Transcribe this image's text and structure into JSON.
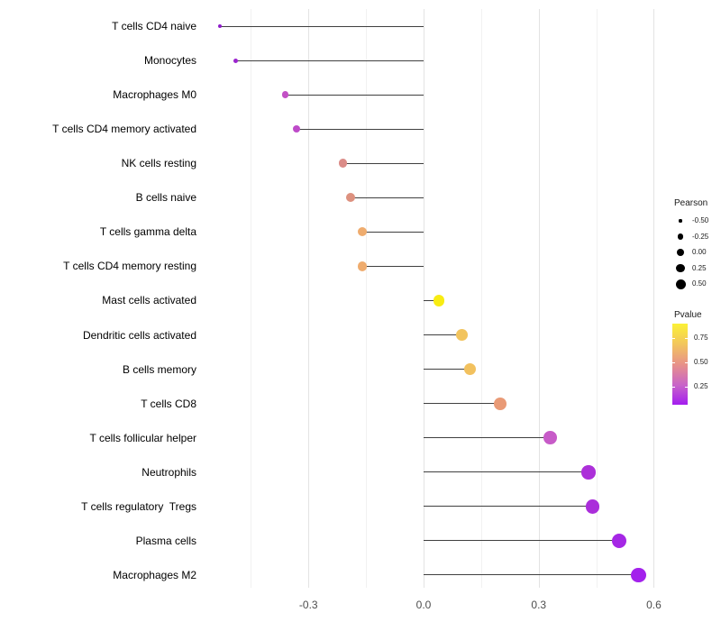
{
  "chart_data": {
    "type": "lollipop",
    "orientation": "horizontal",
    "title": "",
    "xlabel": "",
    "ylabel": "",
    "grid": "vertical-only",
    "x_axis": {
      "range": [
        -0.56,
        0.66
      ],
      "ticks": [
        -0.3,
        0.0,
        0.3,
        0.6
      ],
      "tick_labels": [
        "-0.3",
        "0.0",
        "0.3",
        "0.6"
      ],
      "minor_ticks": [
        -0.45,
        -0.15,
        0.15,
        0.45
      ]
    },
    "series": [
      {
        "category": "T cells CD4 naive",
        "pearson": -0.53,
        "pvalue": 0.09,
        "color": "#8E1CC9"
      },
      {
        "category": "Monocytes",
        "pearson": -0.49,
        "pvalue": 0.11,
        "color": "#9B24CE"
      },
      {
        "category": "Macrophages M0",
        "pearson": -0.36,
        "pvalue": 0.3,
        "color": "#C250C5"
      },
      {
        "category": "T cells CD4 memory activated",
        "pearson": -0.33,
        "pvalue": 0.28,
        "color": "#BE4BC9"
      },
      {
        "category": "NK cells resting",
        "pearson": -0.21,
        "pvalue": 0.45,
        "color": "#DB8C88"
      },
      {
        "category": "B cells naive",
        "pearson": -0.19,
        "pvalue": 0.47,
        "color": "#DD917F"
      },
      {
        "category": "T cells gamma delta",
        "pearson": -0.16,
        "pvalue": 0.57,
        "color": "#EFAC6E"
      },
      {
        "category": "T cells CD4 memory resting",
        "pearson": -0.16,
        "pvalue": 0.57,
        "color": "#EFAC6E"
      },
      {
        "category": "Mast cells activated",
        "pearson": 0.04,
        "pvalue": 0.88,
        "color": "#F8EC12"
      },
      {
        "category": "Dendritic cells activated",
        "pearson": 0.1,
        "pvalue": 0.65,
        "color": "#F2C45E"
      },
      {
        "category": "B cells memory",
        "pearson": 0.12,
        "pvalue": 0.64,
        "color": "#F2C15E"
      },
      {
        "category": "T cells CD8",
        "pearson": 0.2,
        "pvalue": 0.52,
        "color": "#E99A76"
      },
      {
        "category": "T cells follicular helper",
        "pearson": 0.33,
        "pvalue": 0.31,
        "color": "#C75BC8"
      },
      {
        "category": "Neutrophils",
        "pearson": 0.43,
        "pvalue": 0.2,
        "color": "#AC30D9"
      },
      {
        "category": "T cells regulatory  Tregs",
        "pearson": 0.44,
        "pvalue": 0.2,
        "color": "#AA2EDA"
      },
      {
        "category": "Plasma cells",
        "pearson": 0.51,
        "pvalue": 0.15,
        "color": "#A527E5"
      },
      {
        "category": "Macrophages M2",
        "pearson": 0.56,
        "pvalue": 0.11,
        "color": "#A322EC"
      }
    ],
    "legends": {
      "size": {
        "title": "Pearson",
        "entries": [
          {
            "label": "-0.50",
            "value": -0.5
          },
          {
            "label": "-0.25",
            "value": -0.25
          },
          {
            "label": "0.00",
            "value": 0.0
          },
          {
            "label": "0.25",
            "value": 0.25
          },
          {
            "label": "0.50",
            "value": 0.5
          }
        ]
      },
      "color": {
        "title": "Pvalue",
        "range": [
          0.07,
          0.9
        ],
        "tick_labels": [
          "0.75",
          "0.50",
          "0.25"
        ],
        "tick_values": [
          0.75,
          0.5,
          0.25
        ],
        "gradient_bottom_to_top": [
          "#A31DEF",
          "#C863C9",
          "#E89288",
          "#F2C45E",
          "#FBF136"
        ]
      }
    }
  }
}
